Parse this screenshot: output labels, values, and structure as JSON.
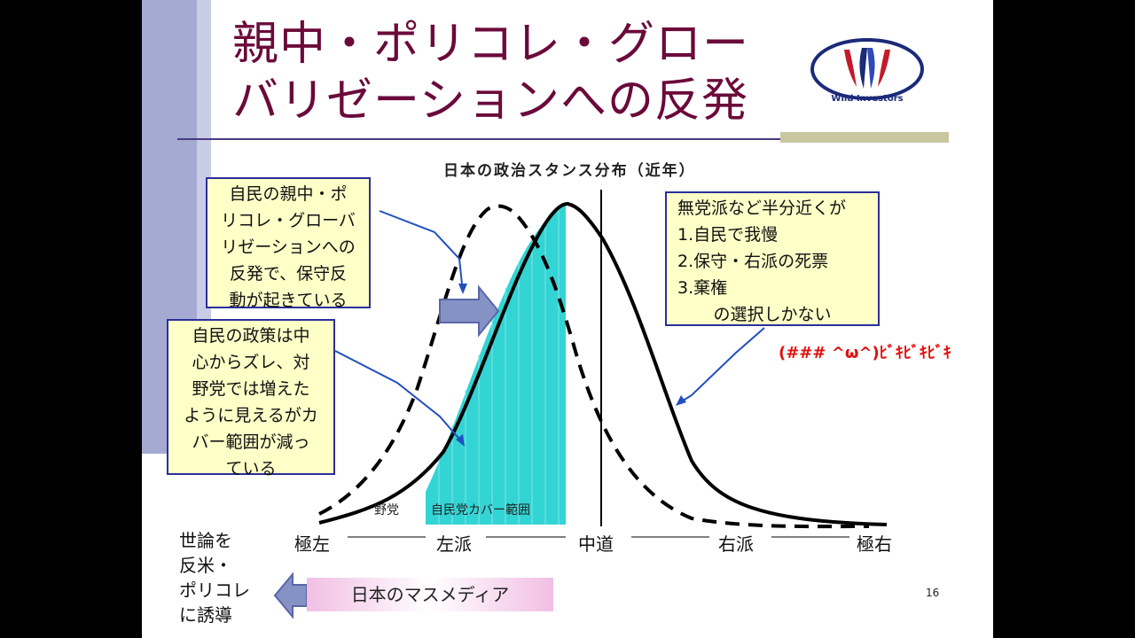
{
  "title": "親中・ポリコレ・グローバリゼーションへの反発",
  "title_line1": "親中・ポリコレ・グロー",
  "title_line2": "バリゼーションへの反発",
  "logo_text": "Wild Investors",
  "chart": {
    "title": "日本の政治スタンス分布（近年）",
    "coverage_label": "自民党カバー範囲",
    "opposition_label": "野党",
    "axis_labels": [
      "極左",
      "左派",
      "中道",
      "右派",
      "極右"
    ]
  },
  "callouts": {
    "left_top": [
      "自民の親中・ポ",
      "リコレ・グローバ",
      "リゼーションへの",
      "反発で、保守反",
      "動が起きている"
    ],
    "left_bottom": [
      "自民の政策は中",
      "心からズレ、対",
      "野党では増えた",
      "ように見えるがカ",
      "バー範囲が減っ",
      "ている"
    ],
    "right": [
      "無党派など半分近くが",
      "1.自民で我慢",
      "2.保守・右派の死票",
      "3.棄権",
      "の選択しかない"
    ]
  },
  "emote": "(### ^ω^)ﾋﾞｷﾋﾞｷﾋﾞｷ",
  "mass_media": "日本のマスメディア",
  "left_text": [
    "世論を",
    "反米・",
    "ポリコレ",
    "に誘導"
  ],
  "page_number": "16",
  "colors": {
    "title": "#6b0a3a",
    "coverage": "#33d4d4",
    "callout_bg": "#ffffc8",
    "callout_border": "#2b2f9a",
    "emote": "#e01010"
  }
}
